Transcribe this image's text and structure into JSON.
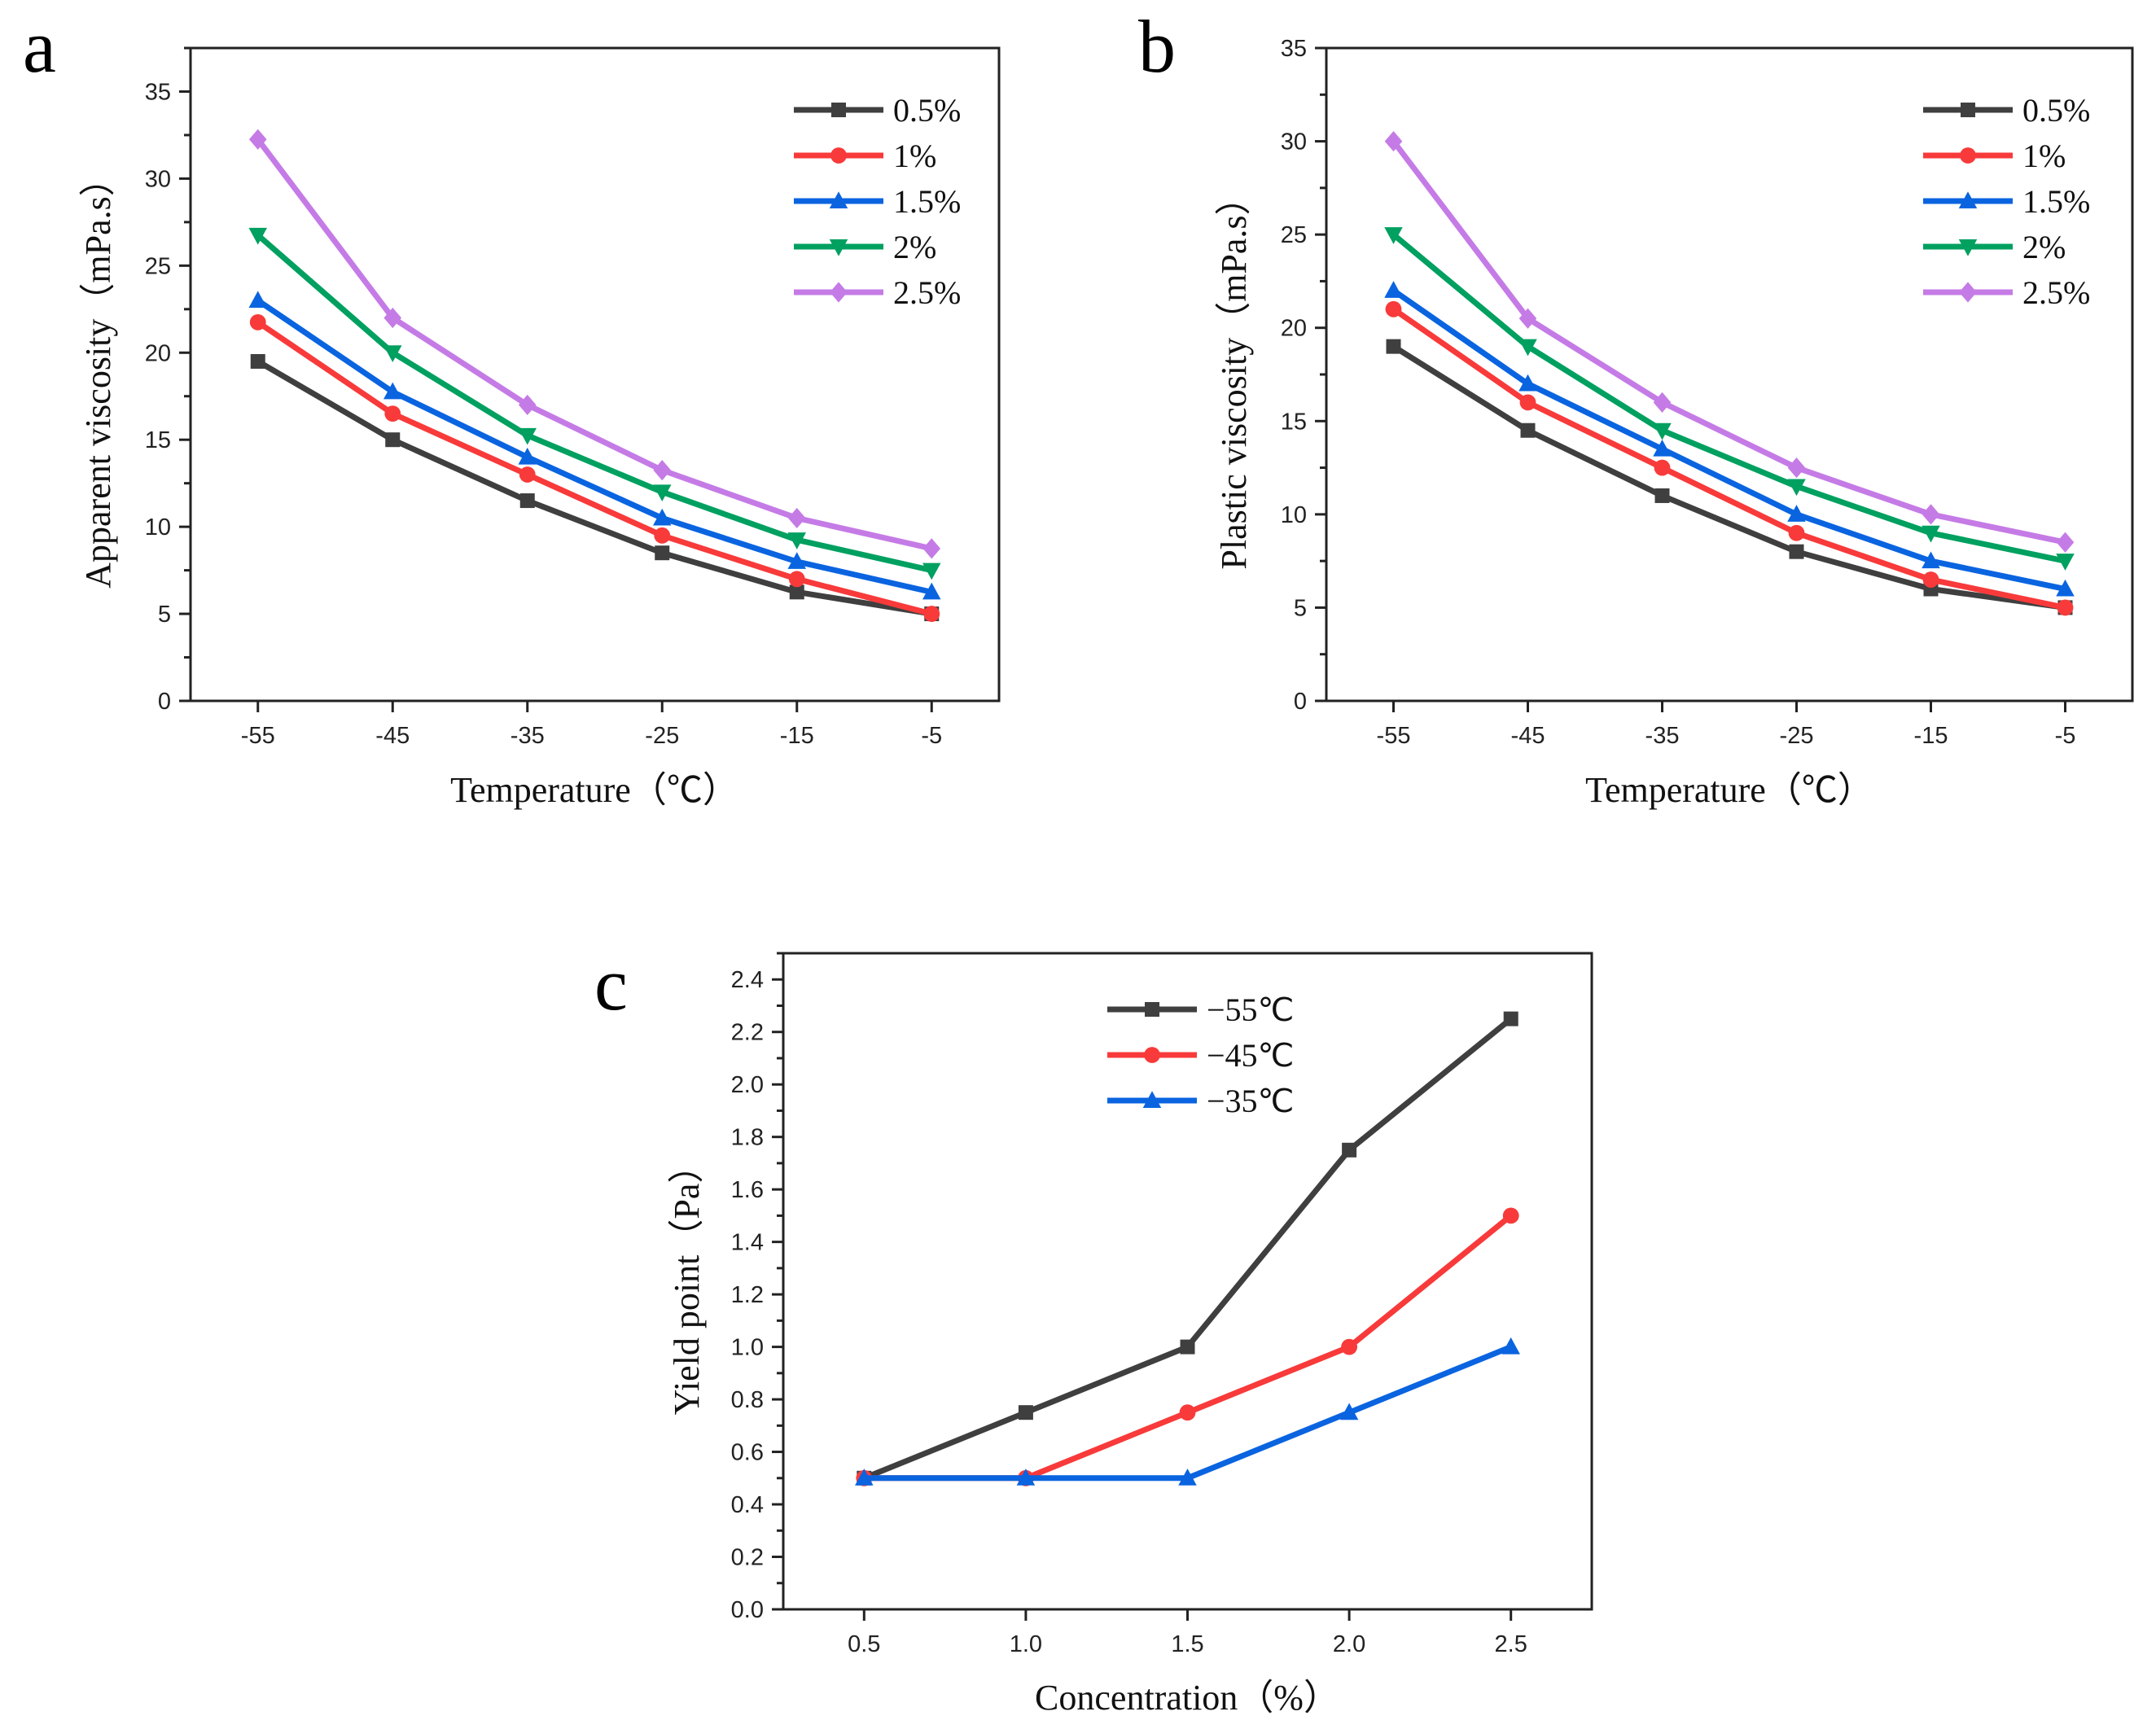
{
  "colors": {
    "s1": "#3f3f3f",
    "s2": "#f83a3a",
    "s3": "#0a64e0",
    "s4": "#00a060",
    "s5": "#c57be6"
  },
  "chart_data": [
    {
      "type": "line",
      "panel": "a",
      "xlabel": "Temperature（℃）",
      "ylabel": "Apparent viscosity（mPa.s）",
      "x": [
        -55,
        -45,
        -35,
        -25,
        -15,
        -5
      ],
      "xticks": [
        "-55",
        "-45",
        "-35",
        "-25",
        "-15",
        "-5"
      ],
      "yticks": [
        "0",
        "5",
        "10",
        "15",
        "20",
        "25",
        "30",
        "35"
      ],
      "xlim": [
        -60,
        0
      ],
      "ylim": [
        0,
        37.5
      ],
      "legend_position": "top-right",
      "series": [
        {
          "name": "0.5%",
          "marker": "square",
          "values": [
            19.5,
            15.0,
            11.5,
            8.5,
            6.25,
            5.0
          ]
        },
        {
          "name": "1%",
          "marker": "circle",
          "values": [
            21.75,
            16.5,
            13.0,
            9.5,
            7.0,
            5.0
          ]
        },
        {
          "name": "1.5%",
          "marker": "triangle-up",
          "values": [
            23.0,
            17.75,
            14.0,
            10.5,
            8.0,
            6.25
          ]
        },
        {
          "name": "2%",
          "marker": "triangle-down",
          "values": [
            26.75,
            20.0,
            15.25,
            12.0,
            9.25,
            7.5
          ]
        },
        {
          "name": "2.5%",
          "marker": "diamond",
          "values": [
            32.25,
            22.0,
            17.0,
            13.25,
            10.5,
            8.75
          ]
        }
      ]
    },
    {
      "type": "line",
      "panel": "b",
      "xlabel": "Temperature（℃）",
      "ylabel": "Plastic viscosity（mPa.s）",
      "x": [
        -55,
        -45,
        -35,
        -25,
        -15,
        -5
      ],
      "xticks": [
        "-55",
        "-45",
        "-35",
        "-25",
        "-15",
        "-5"
      ],
      "yticks": [
        "0",
        "5",
        "10",
        "15",
        "20",
        "25",
        "30",
        "35"
      ],
      "xlim": [
        -60,
        0
      ],
      "ylim": [
        0,
        35
      ],
      "legend_position": "top-right",
      "series": [
        {
          "name": "0.5%",
          "marker": "square",
          "values": [
            19,
            14.5,
            11,
            8,
            6,
            5
          ]
        },
        {
          "name": "1%",
          "marker": "circle",
          "values": [
            21,
            16,
            12.5,
            9,
            6.5,
            5
          ]
        },
        {
          "name": "1.5%",
          "marker": "triangle-up",
          "values": [
            22,
            17,
            13.5,
            10,
            7.5,
            6
          ]
        },
        {
          "name": "2%",
          "marker": "triangle-down",
          "values": [
            25,
            19,
            14.5,
            11.5,
            9,
            7.5
          ]
        },
        {
          "name": "2.5%",
          "marker": "diamond",
          "values": [
            30,
            20.5,
            16,
            12.5,
            10,
            8.5
          ]
        }
      ]
    },
    {
      "type": "line",
      "panel": "c",
      "xlabel": "Concentration（%）",
      "ylabel": "Yield point（Pa）",
      "x": [
        0.5,
        1.0,
        1.5,
        2.0,
        2.5
      ],
      "xticks": [
        "0.5",
        "1.0",
        "1.5",
        "2.0",
        "2.5"
      ],
      "yticks": [
        "0.0",
        "0.2",
        "0.4",
        "0.6",
        "0.8",
        "1.0",
        "1.2",
        "1.4",
        "1.6",
        "1.8",
        "2.0",
        "2.2",
        "2.4"
      ],
      "xlim": [
        0.25,
        2.75
      ],
      "ylim": [
        0,
        2.5
      ],
      "legend_position": "top-center",
      "series": [
        {
          "name": "−55℃",
          "marker": "square",
          "values": [
            0.5,
            0.75,
            1.0,
            1.75,
            2.25
          ]
        },
        {
          "name": "−45℃",
          "marker": "circle",
          "values": [
            0.5,
            0.5,
            0.75,
            1.0,
            1.5
          ]
        },
        {
          "name": "−35℃",
          "marker": "triangle-up",
          "values": [
            0.5,
            0.5,
            0.5,
            0.75,
            1.0
          ]
        }
      ]
    }
  ]
}
